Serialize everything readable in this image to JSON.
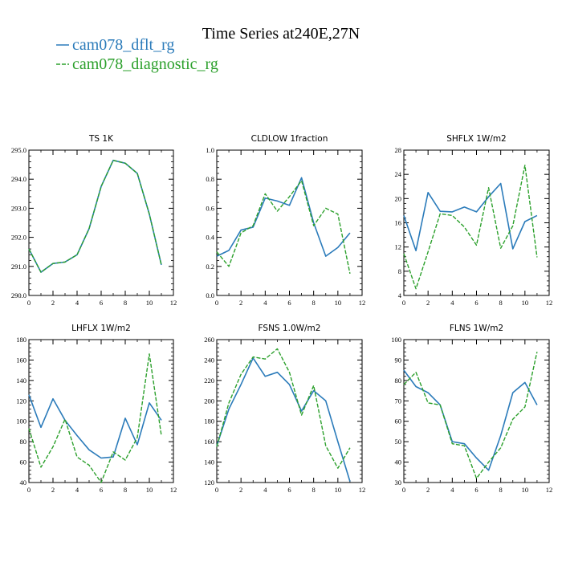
{
  "figure": {
    "title": "Time Series at240E,27N",
    "legend": [
      {
        "label": "cam078_dflt_rg",
        "color": "#2b7bba",
        "style": "solid"
      },
      {
        "label": "cam078_diagnostic_rg",
        "color": "#2ca02c",
        "style": "dashed"
      }
    ]
  },
  "chart_data": [
    {
      "type": "line",
      "title": "TS   1K",
      "x": [
        0,
        1,
        2,
        3,
        4,
        5,
        6,
        7,
        8,
        9,
        10,
        11
      ],
      "xlim": [
        0,
        12
      ],
      "xticks": [
        0,
        2,
        4,
        6,
        8,
        10,
        12
      ],
      "ylim": [
        290.0,
        295.0
      ],
      "yticks": [
        "290.0",
        "291.0",
        "292.0",
        "293.0",
        "294.0",
        "295.0"
      ],
      "series": [
        {
          "name": "cam078_dflt_rg",
          "values": [
            291.6,
            290.8,
            291.1,
            291.15,
            291.4,
            292.3,
            293.75,
            294.65,
            294.55,
            294.2,
            292.8,
            291.05
          ]
        },
        {
          "name": "cam078_diagnostic_rg",
          "values": [
            291.6,
            290.8,
            291.1,
            291.15,
            291.4,
            292.3,
            293.75,
            294.65,
            294.55,
            294.2,
            292.8,
            291.05
          ]
        }
      ]
    },
    {
      "type": "line",
      "title": "CLDLOW   1fraction",
      "x": [
        0,
        1,
        2,
        3,
        4,
        5,
        6,
        7,
        8,
        9,
        10,
        11
      ],
      "xlim": [
        0,
        12
      ],
      "xticks": [
        0,
        2,
        4,
        6,
        8,
        10,
        12
      ],
      "ylim": [
        0.0,
        1.0
      ],
      "yticks": [
        "0.0",
        "0.2",
        "0.4",
        "0.6",
        "0.8",
        "1.0"
      ],
      "series": [
        {
          "name": "cam078_dflt_rg",
          "values": [
            0.27,
            0.31,
            0.45,
            0.47,
            0.67,
            0.65,
            0.62,
            0.81,
            0.5,
            0.27,
            0.33,
            0.43
          ]
        },
        {
          "name": "cam078_diagnostic_rg",
          "values": [
            0.3,
            0.2,
            0.43,
            0.48,
            0.7,
            0.58,
            0.68,
            0.79,
            0.48,
            0.6,
            0.56,
            0.15
          ]
        }
      ]
    },
    {
      "type": "line",
      "title": "SHFLX   1W/m2",
      "x": [
        0,
        1,
        2,
        3,
        4,
        5,
        6,
        7,
        8,
        9,
        10,
        11
      ],
      "xlim": [
        0,
        12
      ],
      "xticks": [
        0,
        2,
        4,
        6,
        8,
        10,
        12
      ],
      "ylim": [
        4,
        28
      ],
      "yticks": [
        "4",
        "8",
        "12",
        "16",
        "20",
        "24",
        "28"
      ],
      "series": [
        {
          "name": "cam078_dflt_rg",
          "values": [
            17.2,
            11.4,
            21.0,
            17.9,
            17.8,
            18.6,
            17.8,
            20.3,
            22.5,
            11.7,
            16.2,
            17.2
          ]
        },
        {
          "name": "cam078_diagnostic_rg",
          "values": [
            10.9,
            5.1,
            11.2,
            17.5,
            17.2,
            15.3,
            12.3,
            21.8,
            11.8,
            15.5,
            25.5,
            10.3
          ]
        }
      ]
    },
    {
      "type": "line",
      "title": "LHFLX   1W/m2",
      "x": [
        0,
        1,
        2,
        3,
        4,
        5,
        6,
        7,
        8,
        9,
        10,
        11
      ],
      "xlim": [
        0,
        12
      ],
      "xticks": [
        0,
        2,
        4,
        6,
        8,
        10,
        12
      ],
      "ylim": [
        40,
        180
      ],
      "yticks": [
        "40",
        "60",
        "80",
        "100",
        "120",
        "140",
        "160",
        "180"
      ],
      "series": [
        {
          "name": "cam078_dflt_rg",
          "values": [
            126,
            94,
            122,
            101,
            86,
            72,
            64,
            65,
            103,
            77,
            118,
            101
          ]
        },
        {
          "name": "cam078_diagnostic_rg",
          "values": [
            93,
            55,
            75,
            102,
            65,
            57,
            40,
            70,
            62,
            84,
            166,
            86
          ]
        }
      ]
    },
    {
      "type": "line",
      "title": "FSNS   1.0W/m2",
      "x": [
        0,
        1,
        2,
        3,
        4,
        5,
        6,
        7,
        8,
        9,
        10,
        11
      ],
      "xlim": [
        0,
        12
      ],
      "xticks": [
        0,
        2,
        4,
        6,
        8,
        10,
        12
      ],
      "ylim": [
        120,
        260
      ],
      "yticks": [
        "120",
        "140",
        "160",
        "180",
        "200",
        "220",
        "240",
        "260"
      ],
      "series": [
        {
          "name": "cam078_dflt_rg",
          "values": [
            156,
            192,
            216,
            242,
            224,
            228,
            216,
            190,
            210,
            200,
            160,
            121
          ]
        },
        {
          "name": "cam078_diagnostic_rg",
          "values": [
            155,
            198,
            226,
            243,
            241,
            251,
            228,
            186,
            215,
            156,
            134,
            154
          ]
        }
      ]
    },
    {
      "type": "line",
      "title": "FLNS   1W/m2",
      "x": [
        0,
        1,
        2,
        3,
        4,
        5,
        6,
        7,
        8,
        9,
        10,
        11
      ],
      "xlim": [
        0,
        12
      ],
      "xticks": [
        0,
        2,
        4,
        6,
        8,
        10,
        12
      ],
      "ylim": [
        30,
        100
      ],
      "yticks": [
        "30",
        "40",
        "50",
        "60",
        "70",
        "80",
        "90",
        "100"
      ],
      "series": [
        {
          "name": "cam078_dflt_rg",
          "values": [
            85,
            77,
            74,
            68,
            50,
            49,
            42,
            36,
            53,
            74,
            79,
            68
          ]
        },
        {
          "name": "cam078_diagnostic_rg",
          "values": [
            78,
            84,
            69,
            68,
            49,
            48,
            32,
            40,
            47,
            61,
            67,
            94
          ]
        }
      ]
    }
  ]
}
